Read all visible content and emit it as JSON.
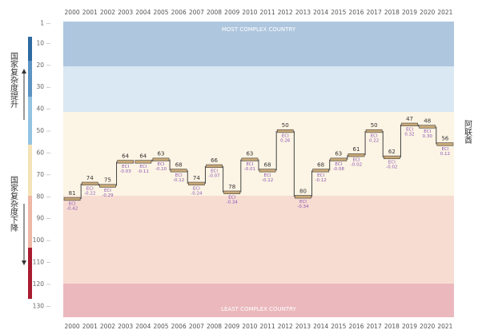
{
  "chart_data": {
    "type": "step",
    "top_label": "MOST COMPLEX COUNTRY",
    "bottom_label": "LEAST COMPLEX COUNTRY",
    "up_label": "国家复杂度提升",
    "down_label": "国家复杂度下降",
    "country": "阿联酋",
    "eci_label": "ECI",
    "categories": [
      "2000",
      "2001",
      "2002",
      "2003",
      "2004",
      "2005",
      "2006",
      "2007",
      "2008",
      "2009",
      "2010",
      "2011",
      "2012",
      "2013",
      "2014",
      "2015",
      "2016",
      "2017",
      "2018",
      "2019",
      "2020",
      "2021"
    ],
    "values": [
      81,
      74,
      75,
      64,
      64,
      63,
      68,
      74,
      66,
      78,
      63,
      68,
      50,
      80,
      68,
      63,
      61,
      50,
      62,
      47,
      48,
      56
    ],
    "eci": {
      "values": [
        -0.42,
        -0.22,
        -0.29,
        -0.03,
        -0.11,
        -0.1,
        -0.12,
        -0.24,
        -0.07,
        -0.34,
        -0.01,
        -0.12,
        0.26,
        -0.34,
        -0.12,
        -0.08,
        -0.02,
        0.22,
        -0.02,
        0.32,
        0.3,
        0.12
      ],
      "value_labels": [
        "-0.42",
        "-0.22",
        "-0.29",
        "-0.03",
        "-0.11",
        "-0.10",
        "-0.12",
        "-0.24",
        "-0.07",
        "-0.34",
        "-0.01",
        "-0.12",
        "0.26",
        "-0.34",
        "-0.12",
        "-0.08",
        "-0.02",
        "0.22",
        "-0.02",
        "0.32",
        "0.30",
        "0.12"
      ]
    },
    "color": "#c8a876",
    "eci_color": "#8a55b5",
    "ylim": [
      0,
      135
    ],
    "reversed": true,
    "yticks": [
      1,
      10,
      20,
      30,
      40,
      50,
      60,
      70,
      80,
      90,
      100,
      110,
      120,
      130
    ]
  }
}
